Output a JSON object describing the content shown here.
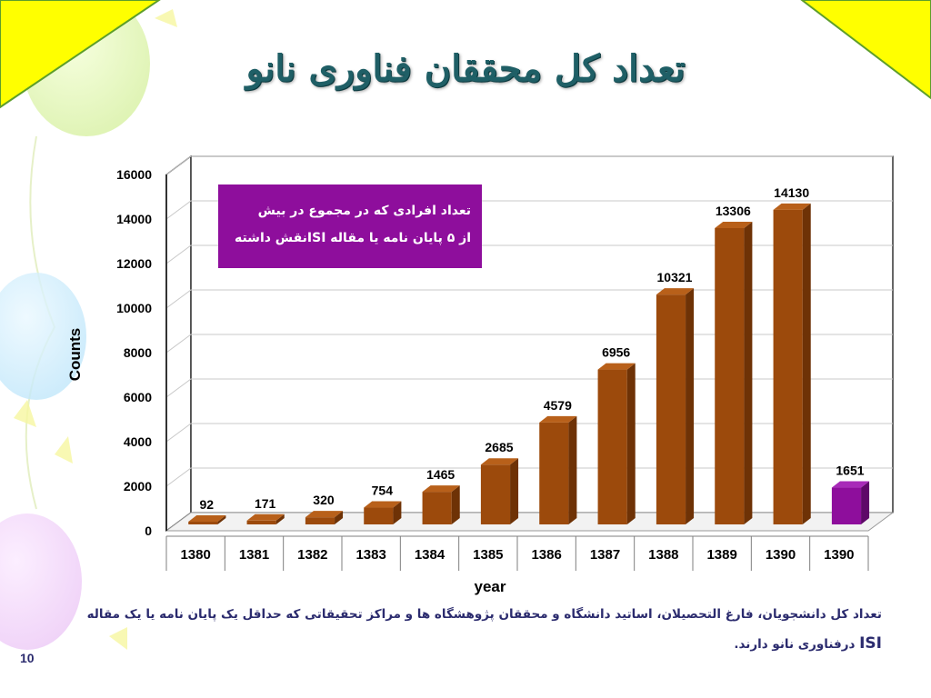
{
  "slide": {
    "title": "تعداد کل محققان فناوری نانو",
    "note_line1": "تعداد افرادی که در مجموع در بیش",
    "note_line2": "از ۵ پایان نامه یا مقاله ISIنقش داشته",
    "footnote_line1": "تعداد کل دانشجویان، فارغ التحصیلان، اساتید دانشگاه و محققان پژوهشگاه ها و مراکز تحقیقاتی که حداقل یک پایان نامه یا یک مقاله",
    "footnote_isi": "ISI",
    "footnote_line2_rest": " درفناوری نانو دارند.",
    "page_number": "10"
  },
  "colors": {
    "bar": "#9c4a0c",
    "bar_side": "#6e3206",
    "bar_top": "#b8601a",
    "highlight_bar": "#8e0e9c",
    "highlight_side": "#5e0868",
    "highlight_top": "#a82ab8",
    "note_bg": "#8e0e9c",
    "title": "#1f5f66",
    "corner": "#ffff00"
  },
  "chart_data": {
    "type": "bar",
    "title": "",
    "xlabel": "year",
    "ylabel": "Counts",
    "ylim": [
      0,
      16000
    ],
    "yticks": [
      0,
      2000,
      4000,
      6000,
      8000,
      10000,
      12000,
      14000,
      16000
    ],
    "grid": true,
    "categories": [
      "1380",
      "1381",
      "1382",
      "1383",
      "1384",
      "1385",
      "1386",
      "1387",
      "1388",
      "1389",
      "1390",
      "1390"
    ],
    "values": [
      92,
      171,
      320,
      754,
      1465,
      2685,
      4579,
      6956,
      10321,
      13306,
      14130,
      1651
    ],
    "highlight_index": 11
  }
}
